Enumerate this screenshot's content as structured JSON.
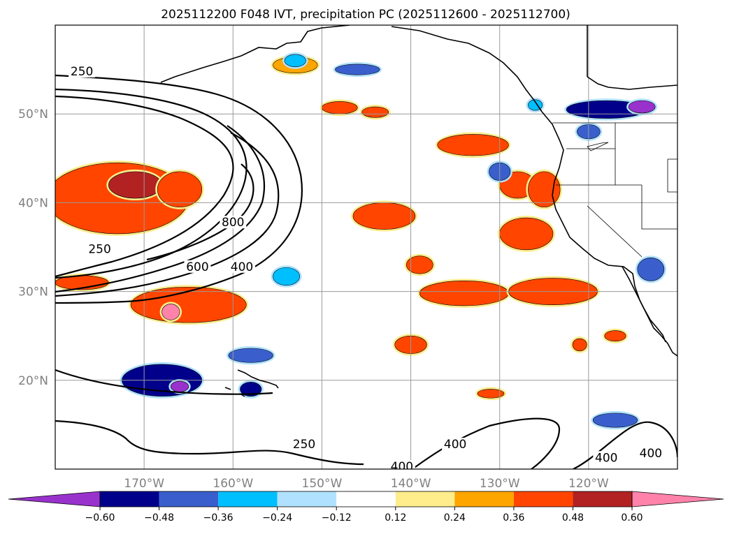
{
  "chart_data": {
    "type": "map-contour",
    "title": "2025112200 F048 IVT, precipitation PC (2025112600 - 2025112700)",
    "extent": {
      "lon_min": -180,
      "lon_max": -110,
      "lat_min": 10,
      "lat_max": 60
    },
    "lat_ticks": [
      {
        "value": 20,
        "label": "20°N"
      },
      {
        "value": 30,
        "label": "30°N"
      },
      {
        "value": 40,
        "label": "40°N"
      },
      {
        "value": 50,
        "label": "50°N"
      }
    ],
    "lon_ticks": [
      {
        "value": -170,
        "label": "170°W"
      },
      {
        "value": -160,
        "label": "160°W"
      },
      {
        "value": -150,
        "label": "150°W"
      },
      {
        "value": -140,
        "label": "140°W"
      },
      {
        "value": -130,
        "label": "130°W"
      },
      {
        "value": -120,
        "label": "120°W"
      }
    ],
    "grid": true,
    "colorbar": {
      "levels": [
        -0.6,
        -0.48,
        -0.36,
        -0.24,
        -0.12,
        0.12,
        0.24,
        0.36,
        0.48,
        0.6
      ],
      "tick_labels": [
        "−0.60",
        "−0.48",
        "−0.36",
        "−0.24",
        "−0.12",
        "0.12",
        "0.24",
        "0.36",
        "0.48",
        "0.60"
      ],
      "colors": [
        "#9932cc",
        "#00008b",
        "#3a5fcd",
        "#00bfff",
        "#b0e2ff",
        "#ffffff",
        "#ffec8b",
        "#ffa500",
        "#ff4500",
        "#b22222",
        "#ff82ab"
      ],
      "extend": "both"
    },
    "ivt_contour_labels": [
      {
        "text": "250",
        "lon": -177,
        "lat": 54.5
      },
      {
        "text": "250",
        "lon": -175,
        "lat": 34.5
      },
      {
        "text": "600",
        "lon": -164,
        "lat": 32.5
      },
      {
        "text": "400",
        "lon": -159,
        "lat": 32.5
      },
      {
        "text": "800",
        "lon": -160,
        "lat": 37.5
      },
      {
        "text": "250",
        "lon": -152,
        "lat": 12.5
      },
      {
        "text": "400",
        "lon": -141,
        "lat": 10.0
      },
      {
        "text": "400",
        "lon": -135,
        "lat": 12.5
      },
      {
        "text": "400",
        "lon": -118,
        "lat": 11.0
      },
      {
        "text": "400",
        "lon": -113,
        "lat": 11.5
      }
    ],
    "precip_anomaly_regions": [
      {
        "lon": -173,
        "lat": 40.5,
        "rx": 8.0,
        "ry": 4.0,
        "value": 0.42
      },
      {
        "lon": -171,
        "lat": 42.0,
        "rx": 3.0,
        "ry": 1.5,
        "value": 0.55
      },
      {
        "lon": -165,
        "lat": 28.5,
        "rx": 6.5,
        "ry": 2.0,
        "value": 0.45
      },
      {
        "lon": -167,
        "lat": 27.7,
        "rx": 1.0,
        "ry": 0.9,
        "value": 0.65
      },
      {
        "lon": -177,
        "lat": 31.0,
        "rx": 3.0,
        "ry": 0.8,
        "value": 0.38
      },
      {
        "lon": -166,
        "lat": 41.5,
        "rx": 2.5,
        "ry": 2.0,
        "value": 0.4
      },
      {
        "lon": -153,
        "lat": 55.5,
        "rx": 2.5,
        "ry": 0.9,
        "value": 0.3
      },
      {
        "lon": -148,
        "lat": 50.7,
        "rx": 2.0,
        "ry": 0.7,
        "value": 0.38
      },
      {
        "lon": -144,
        "lat": 50.2,
        "rx": 1.5,
        "ry": 0.6,
        "value": 0.38
      },
      {
        "lon": -133,
        "lat": 46.5,
        "rx": 4.0,
        "ry": 1.2,
        "value": 0.46
      },
      {
        "lon": -128,
        "lat": 42.0,
        "rx": 2.0,
        "ry": 1.5,
        "value": 0.4
      },
      {
        "lon": -125,
        "lat": 41.5,
        "rx": 1.8,
        "ry": 2.0,
        "value": 0.4
      },
      {
        "lon": -127,
        "lat": 36.5,
        "rx": 3.0,
        "ry": 1.8,
        "value": 0.42
      },
      {
        "lon": -143,
        "lat": 38.5,
        "rx": 3.5,
        "ry": 1.5,
        "value": 0.4
      },
      {
        "lon": -139,
        "lat": 33.0,
        "rx": 1.5,
        "ry": 1.0,
        "value": 0.38
      },
      {
        "lon": -134,
        "lat": 29.8,
        "rx": 5.0,
        "ry": 1.4,
        "value": 0.47
      },
      {
        "lon": -124,
        "lat": 30.0,
        "rx": 5.0,
        "ry": 1.5,
        "value": 0.47
      },
      {
        "lon": -140,
        "lat": 24.0,
        "rx": 1.8,
        "ry": 1.0,
        "value": 0.38
      },
      {
        "lon": -131,
        "lat": 18.5,
        "rx": 1.5,
        "ry": 0.5,
        "value": 0.38
      },
      {
        "lon": -121,
        "lat": 24.0,
        "rx": 0.8,
        "ry": 0.7,
        "value": 0.38
      },
      {
        "lon": -117,
        "lat": 25.0,
        "rx": 1.2,
        "ry": 0.6,
        "value": 0.38
      },
      {
        "lon": -168,
        "lat": 20.0,
        "rx": 4.5,
        "ry": 1.8,
        "value": -0.5
      },
      {
        "lon": -166,
        "lat": 19.3,
        "rx": 1.0,
        "ry": 0.6,
        "value": -0.65
      },
      {
        "lon": -158,
        "lat": 19.0,
        "rx": 1.2,
        "ry": 0.8,
        "value": -0.5
      },
      {
        "lon": -158,
        "lat": 22.8,
        "rx": 2.5,
        "ry": 0.8,
        "value": -0.4
      },
      {
        "lon": -153,
        "lat": 56.0,
        "rx": 1.2,
        "ry": 0.7,
        "value": -0.35
      },
      {
        "lon": -146,
        "lat": 55.0,
        "rx": 2.5,
        "ry": 0.6,
        "value": -0.45
      },
      {
        "lon": -130,
        "lat": 43.5,
        "rx": 1.2,
        "ry": 1.0,
        "value": -0.38
      },
      {
        "lon": -118,
        "lat": 50.5,
        "rx": 4.5,
        "ry": 1.0,
        "value": -0.5
      },
      {
        "lon": -114,
        "lat": 50.8,
        "rx": 1.5,
        "ry": 0.7,
        "value": -0.62
      },
      {
        "lon": -113,
        "lat": 32.5,
        "rx": 1.5,
        "ry": 1.3,
        "value": -0.45
      },
      {
        "lon": -117,
        "lat": 15.5,
        "rx": 2.5,
        "ry": 0.8,
        "value": -0.4
      },
      {
        "lon": -154,
        "lat": 31.7,
        "rx": 1.5,
        "ry": 1.0,
        "value": -0.35
      },
      {
        "lon": -120,
        "lat": 48.0,
        "rx": 1.3,
        "ry": 0.8,
        "value": -0.42
      },
      {
        "lon": -126,
        "lat": 51.0,
        "rx": 0.8,
        "ry": 0.6,
        "value": -0.35
      }
    ]
  }
}
